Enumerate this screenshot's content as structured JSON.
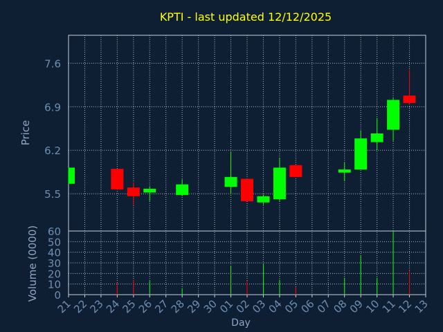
{
  "chart_data": {
    "type": "candlestick",
    "title": "KPTI - last updated 12/12/2025",
    "xlabel": "Day",
    "price_panel": {
      "ylabel": "Price",
      "ylim": [
        4.9,
        8.05
      ],
      "yticks": [
        5.5,
        6.2,
        6.9,
        7.6
      ],
      "ytick_labels": [
        "5.5",
        "6.2",
        "6.9",
        "7.6"
      ],
      "grid": true
    },
    "volume_panel": {
      "ylabel": "Volume (0000)",
      "ylim": [
        0,
        60
      ],
      "yticks": [
        0,
        10,
        20,
        30,
        40,
        50,
        60
      ],
      "ytick_labels": [
        "0",
        "10",
        "20",
        "30",
        "40",
        "50",
        "60"
      ],
      "grid": true
    },
    "x_tick_labels": [
      "21",
      "22",
      "23",
      "24",
      "25",
      "26",
      "27",
      "28",
      "29",
      "30",
      "01",
      "02",
      "03",
      "04",
      "05",
      "06",
      "07",
      "08",
      "09",
      "10",
      "11",
      "12",
      "13"
    ],
    "candles": [
      {
        "day": "21",
        "open": 5.66,
        "close": 5.92,
        "high": 5.92,
        "low": 5.66,
        "volume": 0
      },
      {
        "day": "24",
        "open": 5.9,
        "close": 5.57,
        "high": 5.9,
        "low": 5.57,
        "volume": 11
      },
      {
        "day": "25",
        "open": 5.6,
        "close": 5.46,
        "high": 5.68,
        "low": 5.32,
        "volume": 14
      },
      {
        "day": "26",
        "open": 5.52,
        "close": 5.58,
        "high": 5.62,
        "low": 5.38,
        "volume": 13
      },
      {
        "day": "28",
        "open": 5.48,
        "close": 5.65,
        "high": 5.73,
        "low": 5.46,
        "volume": 6
      },
      {
        "day": "01",
        "open": 5.61,
        "close": 5.77,
        "high": 6.17,
        "low": 5.49,
        "volume": 27
      },
      {
        "day": "02",
        "open": 5.74,
        "close": 5.38,
        "high": 5.74,
        "low": 5.38,
        "volume": 13
      },
      {
        "day": "03",
        "open": 5.36,
        "close": 5.46,
        "high": 5.49,
        "low": 5.32,
        "volume": 29
      },
      {
        "day": "04",
        "open": 5.41,
        "close": 5.92,
        "high": 6.07,
        "low": 5.38,
        "volume": 14
      },
      {
        "day": "05",
        "open": 5.96,
        "close": 5.77,
        "high": 5.96,
        "low": 5.77,
        "volume": 7
      },
      {
        "day": "08",
        "open": 5.84,
        "close": 5.89,
        "high": 6.0,
        "low": 5.7,
        "volume": 16
      },
      {
        "day": "09",
        "open": 5.89,
        "close": 6.39,
        "high": 6.52,
        "low": 5.89,
        "volume": 37
      },
      {
        "day": "10",
        "open": 6.33,
        "close": 6.47,
        "high": 6.72,
        "low": 6.2,
        "volume": 16
      },
      {
        "day": "11",
        "open": 6.53,
        "close": 7.01,
        "high": 7.05,
        "low": 6.35,
        "volume": 61
      },
      {
        "day": "12",
        "open": 7.08,
        "close": 6.96,
        "high": 7.49,
        "low": 6.94,
        "volume": 23
      }
    ],
    "colors": {
      "up": "#00ff00",
      "down": "#ff0000",
      "title": "#ffff00",
      "axis_text": "#6d8fb3",
      "label": "#8fa6c4",
      "background": "#0f1f33",
      "axis": "#c8d2dc",
      "grid": "#c8d2dc"
    }
  }
}
